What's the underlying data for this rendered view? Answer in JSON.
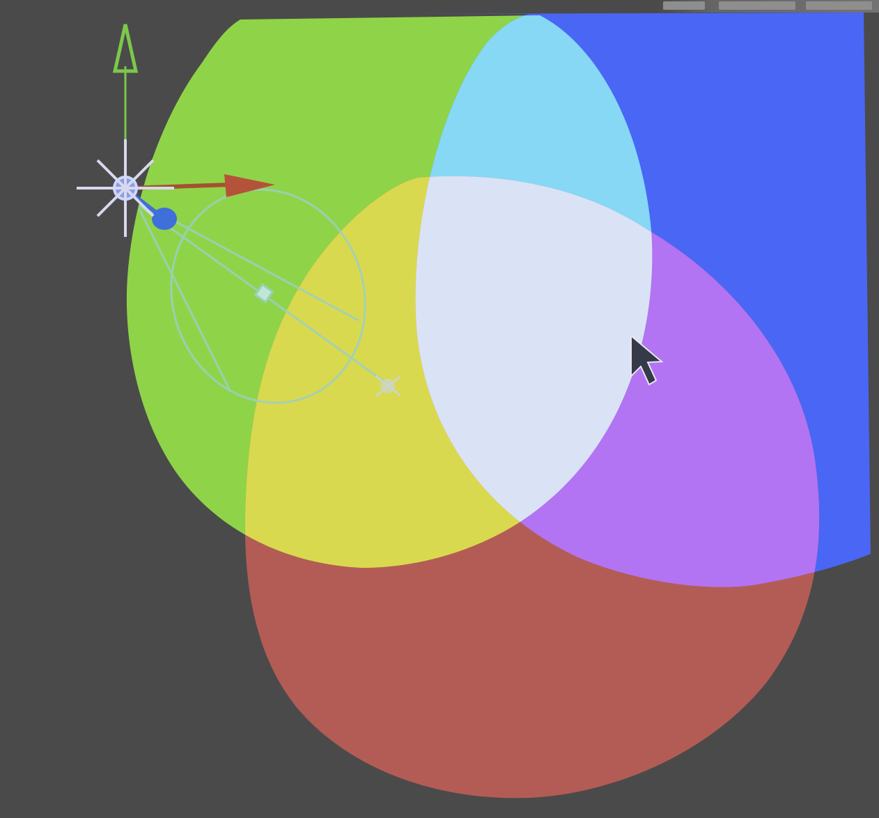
{
  "viewport": {
    "background": "#4a4a4a"
  },
  "lights": [
    {
      "name": "green-light",
      "color": "#8fd448"
    },
    {
      "name": "blue-light",
      "color": "#4a66f5"
    },
    {
      "name": "red-light",
      "color": "#b35c55"
    }
  ],
  "overlaps": {
    "cyan": "#86d8f5",
    "yellow": "#d9d94f",
    "magenta": "#b274f2",
    "white": "#dae3f5"
  },
  "gizmo": {
    "y_axis_color": "#7cc84a",
    "x_axis_color": "#b5523a",
    "z_handle_color": "#3f6fd8",
    "cone_color": "#9ad0c6",
    "light_icon_color": "#d8d8f0"
  },
  "cursor": {
    "icon": "arrow-cursor-icon"
  }
}
